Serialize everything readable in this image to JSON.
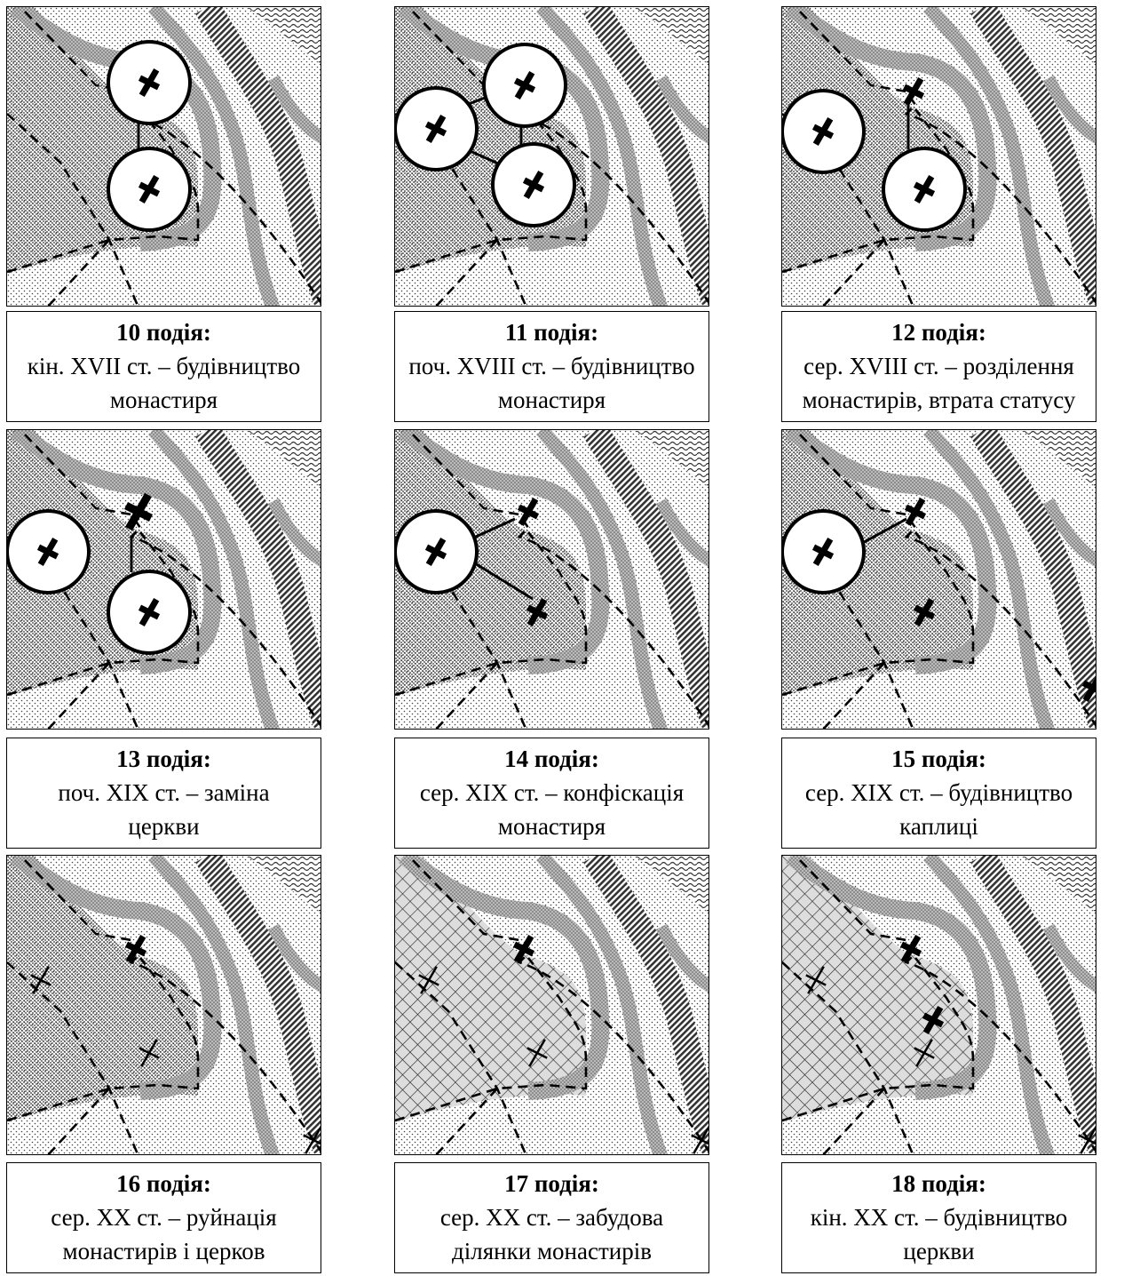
{
  "panels": [
    {
      "title": "10 подія:",
      "lines": [
        "кін. XVII ст. – будівництво",
        "монастиря"
      ]
    },
    {
      "title": "11 подія:",
      "lines": [
        "поч. XVIII ст. – будівництво",
        "монастиря"
      ]
    },
    {
      "title": "12 подія:",
      "lines": [
        "сер. XVIII ст. – розділення",
        "монастирів, втрата статусу"
      ]
    },
    {
      "title": "13 подія:",
      "lines": [
        "поч. XIX ст. – заміна",
        "церкви"
      ]
    },
    {
      "title": "14 подія:",
      "lines": [
        "сер. XIX ст. – конфіскація",
        "монастиря"
      ]
    },
    {
      "title": "15 подія:",
      "lines": [
        "сер. XIX ст. – будівництво",
        "каплиці"
      ]
    },
    {
      "title": "16 подія:",
      "lines": [
        "сер. XX ст. – руйнація",
        "монастирів і церков"
      ]
    },
    {
      "title": "17 подія:",
      "lines": [
        "сер. XX ст. – забудова",
        "ділянки монастирів"
      ]
    },
    {
      "title": "18 подія:",
      "lines": [
        "кін. XX ст. – будівництво",
        "церкви"
      ]
    }
  ]
}
